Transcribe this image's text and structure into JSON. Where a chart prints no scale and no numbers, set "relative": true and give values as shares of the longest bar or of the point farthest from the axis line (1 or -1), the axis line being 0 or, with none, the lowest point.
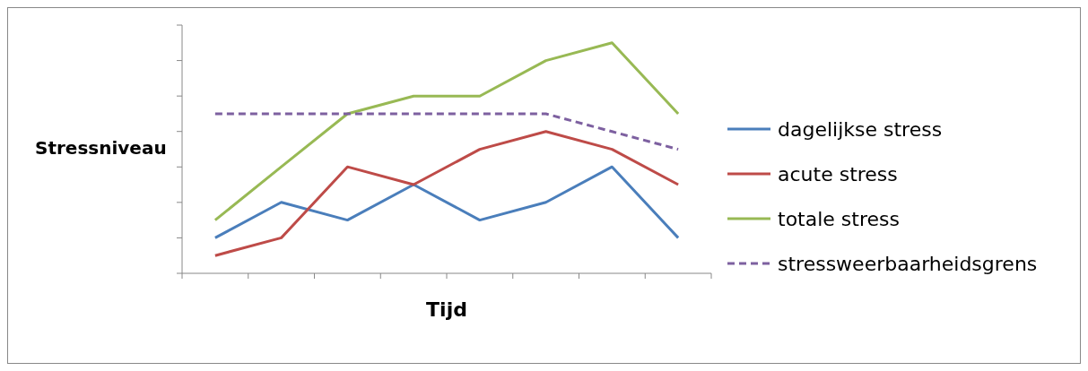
{
  "chart_data": {
    "type": "line",
    "relative": true,
    "xlabel": "Tijd",
    "ylabel": "Stressniveau",
    "categories": [
      null,
      null,
      null,
      null,
      null,
      null,
      null,
      null
    ],
    "series": [
      {
        "name": "dagelijkse stress",
        "color": "#4a7ebb",
        "values": [
          0.154,
          0.308,
          0.231,
          0.385,
          0.231,
          0.308,
          0.462,
          0.154
        ]
      },
      {
        "name": "acute stress",
        "color": "#be4b48",
        "values": [
          0.077,
          0.154,
          0.462,
          0.385,
          0.538,
          0.615,
          0.538,
          0.385
        ]
      },
      {
        "name": "totale stress",
        "color": "#98b954",
        "values": [
          0.231,
          0.462,
          0.692,
          0.769,
          0.769,
          0.923,
          1,
          0.692
        ]
      },
      {
        "name": "stressweerbaarheidsgrens",
        "color": "#7d60a0",
        "line_style": "dashed",
        "values": [
          0.692,
          0.692,
          0.692,
          0.692,
          0.692,
          0.692,
          0.615,
          0.538
        ]
      }
    ],
    "legend": "right",
    "grid": false
  }
}
